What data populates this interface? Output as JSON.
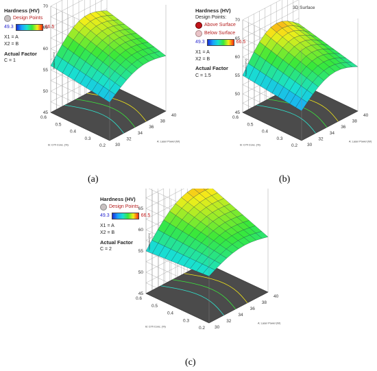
{
  "panels": [
    {
      "caption": "(a)",
      "title": "",
      "legend": {
        "heading": "Hardness (HV)",
        "design_heading": "",
        "points": [
          {
            "label": "Design Points",
            "color": "#c8c0c0"
          }
        ],
        "range_low": "49.3",
        "range_high": "66.5",
        "x1": "X1 = A",
        "x2": "X2 = B",
        "actual_factor_label": "Actual Factor",
        "actual_factor_value": "C = 1"
      }
    },
    {
      "caption": "(b)",
      "title": "3D Surface",
      "legend": {
        "heading": "Hardness (HV)",
        "design_heading": "Design Points:",
        "points": [
          {
            "label": "Above Surface",
            "color": "#c0141a"
          },
          {
            "label": "Below Surface",
            "color": "#e9c3c7"
          }
        ],
        "range_low": "49.3",
        "range_high": "66.5",
        "x1": "X1 = A",
        "x2": "X2 = B",
        "actual_factor_label": "Actual Factor",
        "actual_factor_value": "C = 1.5"
      }
    },
    {
      "caption": "(c)",
      "title": "",
      "legend": {
        "heading": "Hardness (HV)",
        "design_heading": "",
        "points": [
          {
            "label": "Design Points",
            "color": "#c8c0c0"
          }
        ],
        "range_low": "49.3",
        "range_high": "66.5",
        "x1": "X1 = A",
        "x2": "X2 = B",
        "actual_factor_label": "Actual Factor",
        "actual_factor_value": "C = 2"
      }
    }
  ],
  "chart_data": [
    {
      "type": "surface",
      "zlabel": "Hardness (HV)",
      "xlabel": "A: Laser Power (W)",
      "ylabel": "B: CrTi Conc. (%)",
      "x_ticks": [
        "30",
        "32",
        "34",
        "36",
        "38",
        "40"
      ],
      "y_ticks": [
        "0.2",
        "0.3",
        "0.4",
        "0.5",
        "0.6"
      ],
      "z_ticks": [
        "45",
        "50",
        "55",
        "60",
        "65",
        "70"
      ],
      "xlim": [
        30,
        40
      ],
      "ylim": [
        0.2,
        0.6
      ],
      "zlim": [
        45,
        70
      ],
      "color_range": [
        49.3,
        66.5
      ],
      "surface": {
        "A": [
          30,
          40
        ],
        "B": [
          0.2,
          0.6
        ],
        "z_corners": {
          "A30_B0.2": 54,
          "A40_B0.2": 58,
          "A30_B0.6": 56,
          "A40_B0.6": 62
        },
        "ridge": 62,
        "curvature": 4
      },
      "grid_lines": true
    },
    {
      "type": "surface",
      "zlabel": "Hardness (HV)",
      "xlabel": "A: Laser Power (W)",
      "ylabel": "B: CrTi Conc. (%)",
      "x_ticks": [
        "30",
        "32",
        "34",
        "36",
        "38",
        "40"
      ],
      "y_ticks": [
        "0.2",
        "0.3",
        "0.4",
        "0.5",
        "0.6"
      ],
      "z_ticks": [
        "45",
        "50",
        "55",
        "60",
        "65",
        "70"
      ],
      "xlim": [
        30,
        40
      ],
      "ylim": [
        0.2,
        0.6
      ],
      "zlim": [
        45,
        70
      ],
      "color_range": [
        49.3,
        66.5
      ],
      "surface": {
        "A": [
          30,
          40
        ],
        "B": [
          0.2,
          0.6
        ],
        "z_corners": {
          "A30_B0.2": 53,
          "A40_B0.2": 57,
          "A30_B0.6": 55,
          "A40_B0.6": 61
        },
        "ridge": 63,
        "curvature": 6
      },
      "grid_lines": true
    },
    {
      "type": "surface",
      "zlabel": "Hardness (HV)",
      "xlabel": "A: Laser Power (W)",
      "ylabel": "B: CrTi Conc. (%)",
      "x_ticks": [
        "30",
        "32",
        "34",
        "36",
        "38",
        "40"
      ],
      "y_ticks": [
        "0.2",
        "0.3",
        "0.4",
        "0.5",
        "0.6"
      ],
      "z_ticks": [
        "45",
        "50",
        "55",
        "60",
        "65",
        "70"
      ],
      "xlim": [
        30,
        40
      ],
      "ylim": [
        0.2,
        0.6
      ],
      "zlim": [
        45,
        70
      ],
      "color_range": [
        49.3,
        66.5
      ],
      "surface": {
        "A": [
          30,
          40
        ],
        "B": [
          0.2,
          0.6
        ],
        "z_corners": {
          "A30_B0.2": 56,
          "A40_B0.2": 58,
          "A30_B0.6": 55,
          "A40_B0.6": 64
        },
        "ridge": 64,
        "curvature": 3
      },
      "grid_lines": true
    }
  ]
}
